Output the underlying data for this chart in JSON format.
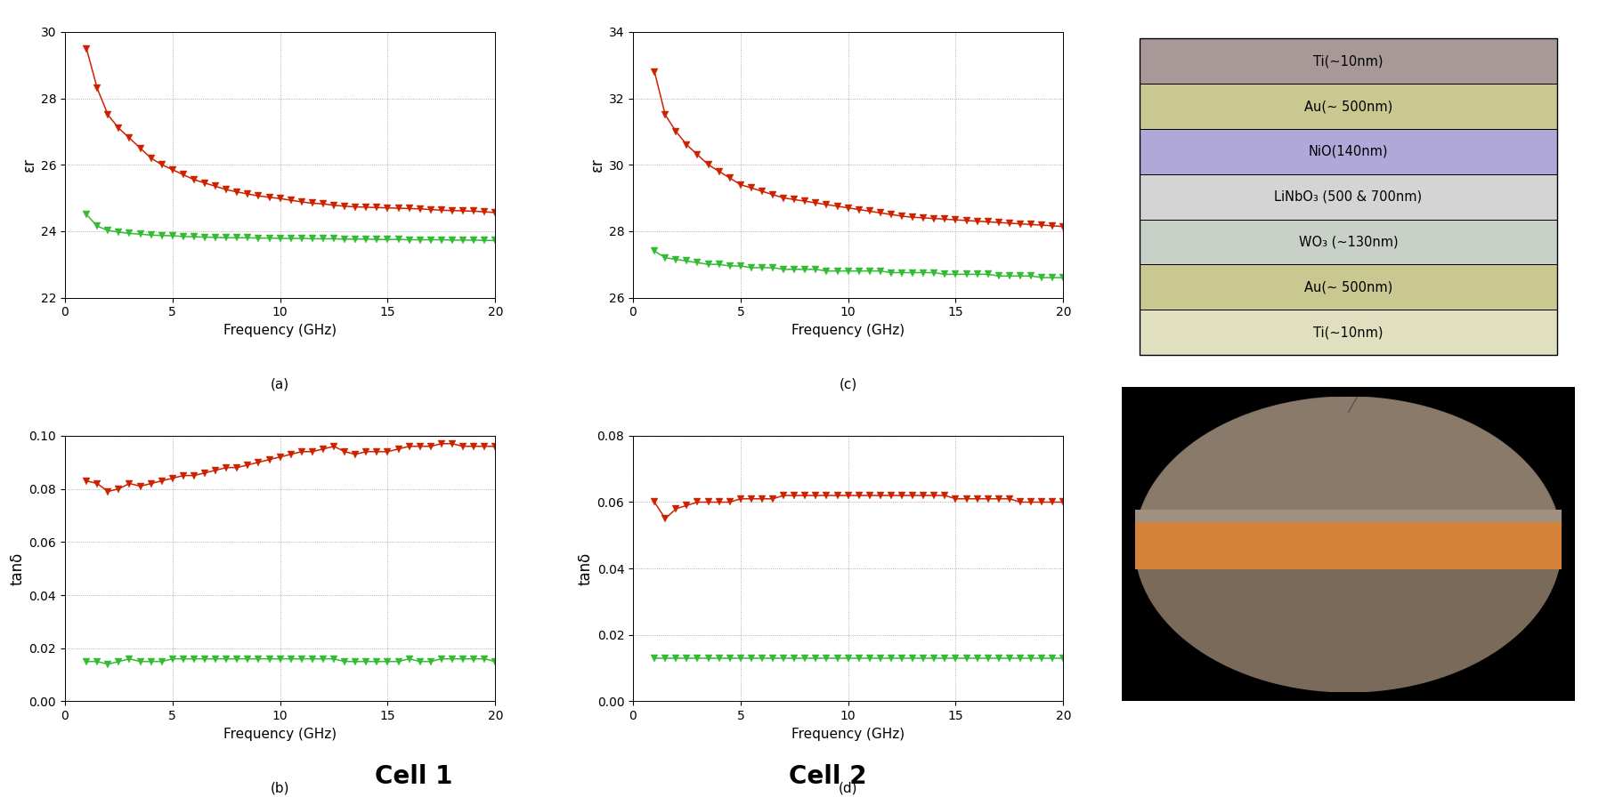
{
  "cell1_a_red_freq": [
    1.0,
    1.5,
    2.0,
    2.5,
    3.0,
    3.5,
    4.0,
    4.5,
    5.0,
    5.5,
    6.0,
    6.5,
    7.0,
    7.5,
    8.0,
    8.5,
    9.0,
    9.5,
    10.0,
    10.5,
    11.0,
    11.5,
    12.0,
    12.5,
    13.0,
    13.5,
    14.0,
    14.5,
    15.0,
    15.5,
    16.0,
    16.5,
    17.0,
    17.5,
    18.0,
    18.5,
    19.0,
    19.5,
    20.0
  ],
  "cell1_a_red_eps": [
    29.5,
    28.3,
    27.5,
    27.1,
    26.8,
    26.5,
    26.2,
    26.0,
    25.85,
    25.7,
    25.55,
    25.45,
    25.35,
    25.25,
    25.18,
    25.12,
    25.06,
    25.02,
    24.98,
    24.93,
    24.88,
    24.84,
    24.82,
    24.78,
    24.75,
    24.73,
    24.72,
    24.71,
    24.7,
    24.69,
    24.68,
    24.67,
    24.65,
    24.63,
    24.62,
    24.61,
    24.6,
    24.58,
    24.56
  ],
  "cell1_a_green_freq": [
    1.0,
    1.5,
    2.0,
    2.5,
    3.0,
    3.5,
    4.0,
    4.5,
    5.0,
    5.5,
    6.0,
    6.5,
    7.0,
    7.5,
    8.0,
    8.5,
    9.0,
    9.5,
    10.0,
    10.5,
    11.0,
    11.5,
    12.0,
    12.5,
    13.0,
    13.5,
    14.0,
    14.5,
    15.0,
    15.5,
    16.0,
    16.5,
    17.0,
    17.5,
    18.0,
    18.5,
    19.0,
    19.5,
    20.0
  ],
  "cell1_a_green_eps": [
    24.5,
    24.15,
    24.02,
    23.97,
    23.93,
    23.91,
    23.88,
    23.87,
    23.86,
    23.84,
    23.83,
    23.82,
    23.81,
    23.8,
    23.8,
    23.8,
    23.79,
    23.79,
    23.78,
    23.78,
    23.78,
    23.77,
    23.77,
    23.77,
    23.76,
    23.76,
    23.76,
    23.75,
    23.75,
    23.75,
    23.74,
    23.74,
    23.74,
    23.74,
    23.73,
    23.73,
    23.73,
    23.72,
    23.72
  ],
  "cell1_a_ylim": [
    22,
    30
  ],
  "cell1_a_yticks": [
    22,
    24,
    26,
    28,
    30
  ],
  "cell1_b_red_freq": [
    1.0,
    1.5,
    2.0,
    2.5,
    3.0,
    3.5,
    4.0,
    4.5,
    5.0,
    5.5,
    6.0,
    6.5,
    7.0,
    7.5,
    8.0,
    8.5,
    9.0,
    9.5,
    10.0,
    10.5,
    11.0,
    11.5,
    12.0,
    12.5,
    13.0,
    13.5,
    14.0,
    14.5,
    15.0,
    15.5,
    16.0,
    16.5,
    17.0,
    17.5,
    18.0,
    18.5,
    19.0,
    19.5,
    20.0
  ],
  "cell1_b_red_tan": [
    0.083,
    0.082,
    0.079,
    0.08,
    0.082,
    0.081,
    0.082,
    0.083,
    0.084,
    0.085,
    0.085,
    0.086,
    0.087,
    0.088,
    0.088,
    0.089,
    0.09,
    0.091,
    0.092,
    0.093,
    0.094,
    0.094,
    0.095,
    0.096,
    0.094,
    0.093,
    0.094,
    0.094,
    0.094,
    0.095,
    0.096,
    0.096,
    0.096,
    0.097,
    0.097,
    0.096,
    0.096,
    0.096,
    0.096
  ],
  "cell1_b_green_freq": [
    1.0,
    1.5,
    2.0,
    2.5,
    3.0,
    3.5,
    4.0,
    4.5,
    5.0,
    5.5,
    6.0,
    6.5,
    7.0,
    7.5,
    8.0,
    8.5,
    9.0,
    9.5,
    10.0,
    10.5,
    11.0,
    11.5,
    12.0,
    12.5,
    13.0,
    13.5,
    14.0,
    14.5,
    15.0,
    15.5,
    16.0,
    16.5,
    17.0,
    17.5,
    18.0,
    18.5,
    19.0,
    19.5,
    20.0
  ],
  "cell1_b_green_tan": [
    0.015,
    0.015,
    0.014,
    0.015,
    0.016,
    0.015,
    0.015,
    0.015,
    0.016,
    0.016,
    0.016,
    0.016,
    0.016,
    0.016,
    0.016,
    0.016,
    0.016,
    0.016,
    0.016,
    0.016,
    0.016,
    0.016,
    0.016,
    0.016,
    0.015,
    0.015,
    0.015,
    0.015,
    0.015,
    0.015,
    0.016,
    0.015,
    0.015,
    0.016,
    0.016,
    0.016,
    0.016,
    0.016,
    0.015
  ],
  "cell1_b_ylim": [
    0,
    0.1
  ],
  "cell1_b_yticks": [
    0,
    0.02,
    0.04,
    0.06,
    0.08,
    0.1
  ],
  "cell2_c_red_freq": [
    1.0,
    1.5,
    2.0,
    2.5,
    3.0,
    3.5,
    4.0,
    4.5,
    5.0,
    5.5,
    6.0,
    6.5,
    7.0,
    7.5,
    8.0,
    8.5,
    9.0,
    9.5,
    10.0,
    10.5,
    11.0,
    11.5,
    12.0,
    12.5,
    13.0,
    13.5,
    14.0,
    14.5,
    15.0,
    15.5,
    16.0,
    16.5,
    17.0,
    17.5,
    18.0,
    18.5,
    19.0,
    19.5,
    20.0
  ],
  "cell2_c_red_eps": [
    32.8,
    31.5,
    31.0,
    30.6,
    30.3,
    30.0,
    29.8,
    29.6,
    29.4,
    29.3,
    29.2,
    29.1,
    29.0,
    28.95,
    28.9,
    28.85,
    28.8,
    28.75,
    28.7,
    28.65,
    28.6,
    28.55,
    28.5,
    28.45,
    28.42,
    28.4,
    28.38,
    28.36,
    28.34,
    28.32,
    28.3,
    28.28,
    28.26,
    28.24,
    28.22,
    28.2,
    28.18,
    28.16,
    28.14
  ],
  "cell2_c_green_freq": [
    1.0,
    1.5,
    2.0,
    2.5,
    3.0,
    3.5,
    4.0,
    4.5,
    5.0,
    5.5,
    6.0,
    6.5,
    7.0,
    7.5,
    8.0,
    8.5,
    9.0,
    9.5,
    10.0,
    10.5,
    11.0,
    11.5,
    12.0,
    12.5,
    13.0,
    13.5,
    14.0,
    14.5,
    15.0,
    15.5,
    16.0,
    16.5,
    17.0,
    17.5,
    18.0,
    18.5,
    19.0,
    19.5,
    20.0
  ],
  "cell2_c_green_eps": [
    27.4,
    27.2,
    27.15,
    27.1,
    27.05,
    27.0,
    27.0,
    26.95,
    26.95,
    26.9,
    26.9,
    26.9,
    26.85,
    26.85,
    26.85,
    26.85,
    26.8,
    26.8,
    26.8,
    26.8,
    26.8,
    26.8,
    26.75,
    26.75,
    26.75,
    26.75,
    26.75,
    26.7,
    26.7,
    26.7,
    26.7,
    26.7,
    26.65,
    26.65,
    26.65,
    26.65,
    26.6,
    26.6,
    26.6
  ],
  "cell2_c_ylim": [
    26,
    34
  ],
  "cell2_c_yticks": [
    26,
    28,
    30,
    32,
    34
  ],
  "cell2_d_red_freq": [
    1.0,
    1.5,
    2.0,
    2.5,
    3.0,
    3.5,
    4.0,
    4.5,
    5.0,
    5.5,
    6.0,
    6.5,
    7.0,
    7.5,
    8.0,
    8.5,
    9.0,
    9.5,
    10.0,
    10.5,
    11.0,
    11.5,
    12.0,
    12.5,
    13.0,
    13.5,
    14.0,
    14.5,
    15.0,
    15.5,
    16.0,
    16.5,
    17.0,
    17.5,
    18.0,
    18.5,
    19.0,
    19.5,
    20.0
  ],
  "cell2_d_red_tan": [
    0.06,
    0.055,
    0.058,
    0.059,
    0.06,
    0.06,
    0.06,
    0.06,
    0.061,
    0.061,
    0.061,
    0.061,
    0.062,
    0.062,
    0.062,
    0.062,
    0.062,
    0.062,
    0.062,
    0.062,
    0.062,
    0.062,
    0.062,
    0.062,
    0.062,
    0.062,
    0.062,
    0.062,
    0.061,
    0.061,
    0.061,
    0.061,
    0.061,
    0.061,
    0.06,
    0.06,
    0.06,
    0.06,
    0.06
  ],
  "cell2_d_green_freq": [
    1.0,
    1.5,
    2.0,
    2.5,
    3.0,
    3.5,
    4.0,
    4.5,
    5.0,
    5.5,
    6.0,
    6.5,
    7.0,
    7.5,
    8.0,
    8.5,
    9.0,
    9.5,
    10.0,
    10.5,
    11.0,
    11.5,
    12.0,
    12.5,
    13.0,
    13.5,
    14.0,
    14.5,
    15.0,
    15.5,
    16.0,
    16.5,
    17.0,
    17.5,
    18.0,
    18.5,
    19.0,
    19.5,
    20.0
  ],
  "cell2_d_green_tan": [
    0.013,
    0.013,
    0.013,
    0.013,
    0.013,
    0.013,
    0.013,
    0.013,
    0.013,
    0.013,
    0.013,
    0.013,
    0.013,
    0.013,
    0.013,
    0.013,
    0.013,
    0.013,
    0.013,
    0.013,
    0.013,
    0.013,
    0.013,
    0.013,
    0.013,
    0.013,
    0.013,
    0.013,
    0.013,
    0.013,
    0.013,
    0.013,
    0.013,
    0.013,
    0.013,
    0.013,
    0.013,
    0.013,
    0.013
  ],
  "cell2_d_ylim": [
    0,
    0.08
  ],
  "cell2_d_yticks": [
    0,
    0.02,
    0.04,
    0.06,
    0.08
  ],
  "red_color": "#CC2200",
  "green_color": "#33BB33",
  "marker": "v",
  "markersize": 6,
  "layers": [
    {
      "label": "Ti(∼10nm)",
      "color": "#A89898"
    },
    {
      "label": "Au(∼ 500nm)",
      "color": "#C8C890"
    },
    {
      "label": "NiO(140nm)",
      "color": "#B0A8D8"
    },
    {
      "label": "LiNbO₃ (500 & 700nm)",
      "color": "#D4D4D4"
    },
    {
      "label": "WO₃ (∼130nm)",
      "color": "#C8D0C8"
    },
    {
      "label": "Au(∼ 500nm)",
      "color": "#C8C890"
    },
    {
      "label": "Ti(∼10nm)",
      "color": "#E0E0C0"
    }
  ],
  "cell1_label": "Cell 1",
  "cell2_label": "Cell 2",
  "subplot_labels": [
    "(a)",
    "(b)",
    "(c)",
    "(d)"
  ],
  "xlabel": "Frequency (GHz)",
  "ylabel_eps": "εr",
  "ylabel_tan": "tanδ",
  "xlim": [
    0,
    20
  ],
  "xticks": [
    0,
    5,
    10,
    15,
    20
  ]
}
